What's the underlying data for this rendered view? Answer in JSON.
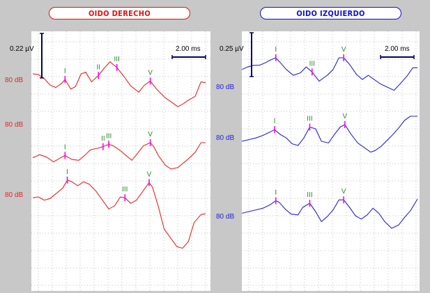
{
  "titles": {
    "right_ear": "OIDO DERECHO",
    "left_ear": "OIDO IZQUIERDO"
  },
  "colors": {
    "right_ear": "#ee2222",
    "left_ear": "#2222dd",
    "peak_label": "#2a8a2a",
    "peak_marker": "#ff00ff",
    "scale_bar": "#00006a"
  },
  "chart_data": [
    {
      "type": "line",
      "title": "OIDO DERECHO",
      "amplitude_scale": "0.22 µV",
      "time_scale": "2.00 ms",
      "grid": true,
      "series": [
        {
          "label": "80 dB",
          "points": [
            [
              0.0,
              0.3
            ],
            [
              0.5,
              0.25
            ],
            [
              1.0,
              0.0
            ],
            [
              1.5,
              -0.4
            ],
            [
              2.0,
              -0.55
            ],
            [
              2.5,
              -0.3
            ],
            [
              2.8,
              -0.05
            ],
            [
              3.3,
              -0.65
            ],
            [
              3.7,
              -0.5
            ],
            [
              4.2,
              0.3
            ],
            [
              4.6,
              0.4
            ],
            [
              5.1,
              -0.2
            ],
            [
              5.7,
              0.2
            ],
            [
              6.2,
              0.65
            ],
            [
              6.7,
              1.05
            ],
            [
              7.3,
              0.7
            ],
            [
              8.0,
              0.05
            ],
            [
              8.5,
              -0.45
            ],
            [
              9.2,
              -0.85
            ],
            [
              9.7,
              -0.4
            ],
            [
              10.2,
              -0.15
            ],
            [
              10.8,
              -0.7
            ],
            [
              11.5,
              -1.2
            ],
            [
              12.1,
              -1.5
            ],
            [
              12.6,
              -1.75
            ],
            [
              13.1,
              -1.55
            ],
            [
              13.5,
              -1.35
            ],
            [
              14.1,
              -1.1
            ],
            [
              14.6,
              -0.2
            ],
            [
              15.0,
              -0.25
            ]
          ],
          "peaks": [
            {
              "name": "I",
              "t": 2.8,
              "v": -0.05
            },
            {
              "name": "II",
              "t": 5.7,
              "v": 0.2
            },
            {
              "name": "III",
              "t": 7.3,
              "v": 0.7
            },
            {
              "name": "V",
              "t": 10.2,
              "v": -0.15
            }
          ]
        },
        {
          "label": "80 dB",
          "points": [
            [
              0.0,
              -0.95
            ],
            [
              0.6,
              -0.75
            ],
            [
              1.2,
              -0.9
            ],
            [
              1.8,
              -1.2
            ],
            [
              2.4,
              -0.95
            ],
            [
              2.8,
              -0.8
            ],
            [
              3.4,
              -1.05
            ],
            [
              4.0,
              -1.1
            ],
            [
              4.5,
              -0.8
            ],
            [
              5.0,
              -0.45
            ],
            [
              5.6,
              -0.35
            ],
            [
              6.1,
              -0.25
            ],
            [
              6.6,
              -0.1
            ],
            [
              7.0,
              -0.2
            ],
            [
              7.6,
              -0.5
            ],
            [
              8.1,
              -0.8
            ],
            [
              8.6,
              -1.1
            ],
            [
              9.0,
              -0.75
            ],
            [
              9.6,
              -0.2
            ],
            [
              10.2,
              0.0
            ],
            [
              10.5,
              -0.25
            ],
            [
              10.9,
              -0.8
            ],
            [
              11.5,
              -1.4
            ],
            [
              12.0,
              -1.65
            ],
            [
              12.6,
              -1.55
            ],
            [
              13.1,
              -1.25
            ],
            [
              13.6,
              -0.95
            ],
            [
              14.1,
              -0.6
            ],
            [
              14.6,
              0.0
            ],
            [
              15.0,
              0.0
            ]
          ],
          "peaks": [
            {
              "name": "I",
              "t": 2.8,
              "v": -0.8
            },
            {
              "name": "II",
              "t": 6.1,
              "v": -0.25
            },
            {
              "name": "III",
              "t": 6.6,
              "v": -0.1
            },
            {
              "name": "V",
              "t": 10.2,
              "v": 0.0
            }
          ]
        },
        {
          "label": "80 dB",
          "points": [
            [
              0.0,
              -0.05
            ],
            [
              0.5,
              0.0
            ],
            [
              1.0,
              -0.2
            ],
            [
              1.5,
              -0.1
            ],
            [
              2.0,
              0.2
            ],
            [
              2.6,
              0.55
            ],
            [
              3.0,
              1.05
            ],
            [
              3.4,
              0.95
            ],
            [
              3.9,
              0.7
            ],
            [
              4.4,
              0.95
            ],
            [
              4.9,
              0.8
            ],
            [
              5.5,
              0.35
            ],
            [
              6.1,
              -0.25
            ],
            [
              6.6,
              -0.75
            ],
            [
              7.1,
              -0.55
            ],
            [
              7.6,
              0.0
            ],
            [
              8.0,
              -0.05
            ],
            [
              8.5,
              -0.4
            ],
            [
              9.0,
              -0.2
            ],
            [
              9.6,
              0.4
            ],
            [
              10.1,
              0.9
            ],
            [
              10.4,
              0.6
            ],
            [
              10.9,
              -0.6
            ],
            [
              11.4,
              -2.0
            ],
            [
              12.0,
              -2.6
            ],
            [
              12.5,
              -3.1
            ],
            [
              13.0,
              -3.2
            ],
            [
              13.5,
              -2.8
            ],
            [
              14.0,
              -1.6
            ],
            [
              14.6,
              -1.1
            ],
            [
              15.0,
              -1.05
            ]
          ],
          "peaks": [
            {
              "name": "I",
              "t": 3.0,
              "v": 1.05
            },
            {
              "name": "III",
              "t": 8.0,
              "v": -0.05
            },
            {
              "name": "V",
              "t": 10.1,
              "v": 0.9
            }
          ]
        }
      ]
    },
    {
      "type": "line",
      "title": "OIDO IZQUIERDO",
      "amplitude_scale": "0.25 µV",
      "time_scale": "2.00 ms",
      "grid": true,
      "series": [
        {
          "label": "80 dB",
          "points": [
            [
              0.0,
              -0.2
            ],
            [
              0.5,
              -0.05
            ],
            [
              1.0,
              0.05
            ],
            [
              1.5,
              0.05
            ],
            [
              2.0,
              0.2
            ],
            [
              2.4,
              0.35
            ],
            [
              2.9,
              0.5
            ],
            [
              3.3,
              0.2
            ],
            [
              3.8,
              -0.2
            ],
            [
              4.4,
              -0.55
            ],
            [
              5.0,
              -0.4
            ],
            [
              5.5,
              -0.05
            ],
            [
              6.0,
              -0.35
            ],
            [
              6.6,
              -0.9
            ],
            [
              7.3,
              -0.55
            ],
            [
              7.8,
              -0.2
            ],
            [
              8.3,
              0.5
            ],
            [
              8.7,
              0.5
            ],
            [
              9.2,
              0.1
            ],
            [
              9.8,
              -0.5
            ],
            [
              10.3,
              -0.8
            ],
            [
              10.8,
              -0.55
            ],
            [
              11.3,
              -0.8
            ],
            [
              11.8,
              -1.05
            ],
            [
              12.4,
              -1.25
            ],
            [
              13.0,
              -1.45
            ],
            [
              13.6,
              -1.0
            ],
            [
              14.1,
              -0.6
            ],
            [
              14.6,
              -0.1
            ],
            [
              15.0,
              -0.1
            ]
          ],
          "peaks": [
            {
              "name": "I",
              "t": 2.9,
              "v": 0.5
            },
            {
              "name": "III",
              "t": 6.0,
              "v": -0.35
            },
            {
              "name": "V",
              "t": 8.7,
              "v": 0.5
            }
          ]
        },
        {
          "label": "80 dB",
          "points": [
            [
              0.0,
              -0.75
            ],
            [
              0.6,
              -0.65
            ],
            [
              1.2,
              -0.55
            ],
            [
              1.8,
              -0.4
            ],
            [
              2.4,
              -0.2
            ],
            [
              2.8,
              -0.05
            ],
            [
              3.3,
              -0.35
            ],
            [
              3.8,
              -0.55
            ],
            [
              4.3,
              -0.9
            ],
            [
              4.8,
              -1.0
            ],
            [
              5.3,
              -0.55
            ],
            [
              5.8,
              0.1
            ],
            [
              6.3,
              0.0
            ],
            [
              6.8,
              -0.75
            ],
            [
              7.4,
              -0.85
            ],
            [
              7.9,
              -0.35
            ],
            [
              8.4,
              0.1
            ],
            [
              8.8,
              0.25
            ],
            [
              9.3,
              -0.3
            ],
            [
              9.9,
              -0.85
            ],
            [
              10.5,
              -1.15
            ],
            [
              11.0,
              -1.4
            ],
            [
              11.4,
              -1.3
            ],
            [
              11.9,
              -1.05
            ],
            [
              12.4,
              -0.7
            ],
            [
              12.9,
              -0.35
            ],
            [
              13.4,
              0.05
            ],
            [
              13.9,
              0.5
            ],
            [
              14.4,
              0.75
            ],
            [
              15.0,
              0.75
            ]
          ],
          "peaks": [
            {
              "name": "I",
              "t": 2.8,
              "v": -0.05
            },
            {
              "name": "III",
              "t": 5.8,
              "v": 0.1
            },
            {
              "name": "V",
              "t": 8.8,
              "v": 0.25
            }
          ]
        },
        {
          "label": "80 dB",
          "points": [
            [
              0.0,
              -0.35
            ],
            [
              0.6,
              -0.25
            ],
            [
              1.2,
              -0.15
            ],
            [
              1.8,
              -0.05
            ],
            [
              2.4,
              0.15
            ],
            [
              2.9,
              0.4
            ],
            [
              3.2,
              0.3
            ],
            [
              3.7,
              -0.1
            ],
            [
              4.2,
              -0.4
            ],
            [
              4.8,
              -0.45
            ],
            [
              5.2,
              0.0
            ],
            [
              5.8,
              0.25
            ],
            [
              6.3,
              -0.25
            ],
            [
              6.8,
              -0.85
            ],
            [
              7.3,
              -0.55
            ],
            [
              7.8,
              -0.15
            ],
            [
              8.3,
              0.45
            ],
            [
              8.7,
              0.45
            ],
            [
              9.2,
              0.0
            ],
            [
              9.7,
              -0.5
            ],
            [
              10.2,
              -0.7
            ],
            [
              10.7,
              -0.45
            ],
            [
              11.2,
              -0.05
            ],
            [
              11.7,
              -0.35
            ],
            [
              12.2,
              -0.85
            ],
            [
              12.8,
              -1.25
            ],
            [
              13.4,
              -1.05
            ],
            [
              13.9,
              -0.6
            ],
            [
              14.4,
              -0.2
            ],
            [
              15.0,
              0.5
            ]
          ],
          "peaks": [
            {
              "name": "I",
              "t": 2.9,
              "v": 0.4
            },
            {
              "name": "III",
              "t": 5.8,
              "v": 0.25
            },
            {
              "name": "V",
              "t": 8.7,
              "v": 0.45
            }
          ]
        }
      ]
    }
  ]
}
